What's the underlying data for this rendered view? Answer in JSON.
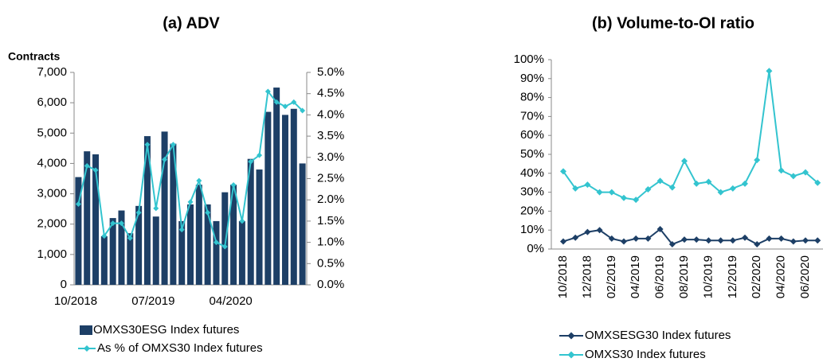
{
  "chart_data": [
    {
      "type": "bar_line",
      "title": "(a)  ADV",
      "y_label": "Contracts",
      "categories": [
        "10/2018",
        null,
        null,
        null,
        null,
        null,
        null,
        null,
        null,
        "07/2019",
        null,
        null,
        null,
        null,
        null,
        null,
        null,
        null,
        "04/2020",
        null,
        null,
        null,
        null,
        null,
        null,
        null,
        null
      ],
      "series": [
        {
          "name": "OMXS30ESG Index futures",
          "color": "#1d3f66",
          "kind": "bar",
          "values": [
            3550,
            4400,
            4300,
            1600,
            2200,
            2450,
            1700,
            2600,
            4900,
            2250,
            5050,
            4650,
            2100,
            2650,
            3300,
            2650,
            2100,
            3050,
            3300,
            2100,
            4150,
            3800,
            5700,
            6500,
            5600,
            5800,
            4000
          ]
        },
        {
          "name": "As % of OMXS30 Index futures",
          "color": "#33c4cf",
          "kind": "line",
          "axis": "y2",
          "values": [
            1.9,
            2.8,
            2.7,
            1.15,
            1.45,
            1.45,
            1.1,
            1.7,
            3.3,
            1.8,
            2.95,
            3.3,
            1.3,
            1.95,
            2.45,
            1.7,
            1.0,
            0.9,
            2.35,
            1.5,
            2.9,
            3.05,
            4.55,
            4.3,
            4.2,
            4.3,
            4.1
          ]
        }
      ],
      "ylim": [
        0,
        7000
      ],
      "yticks": [
        0,
        {
          "value": 1000,
          "label": "1,000"
        },
        {
          "value": 2000,
          "label": "2,000"
        },
        {
          "value": 3000,
          "label": "3,000"
        },
        {
          "value": 4000,
          "label": "4,000"
        },
        {
          "value": 5000,
          "label": "5,000"
        },
        {
          "value": 6000,
          "label": "6,000"
        },
        {
          "value": 7000,
          "label": "7,000"
        }
      ],
      "y2lim": [
        0,
        5
      ],
      "y2ticks": [
        {
          "value": 0,
          "label": "0.0%"
        },
        {
          "value": 0.5,
          "label": "0.5%"
        },
        {
          "value": 1,
          "label": "1.0%"
        },
        {
          "value": 1.5,
          "label": "1.5%"
        },
        {
          "value": 2,
          "label": "2.0%"
        },
        {
          "value": 2.5,
          "label": "2.5%"
        },
        {
          "value": 3,
          "label": "3.0%"
        },
        {
          "value": 3.5,
          "label": "3.5%"
        },
        {
          "value": 4,
          "label": "4.0%"
        },
        {
          "value": 4.5,
          "label": "4.5%"
        },
        {
          "value": 5,
          "label": "5.0%"
        }
      ]
    },
    {
      "type": "line",
      "title": "(b)  Volume-to-OI ratio",
      "categories": [
        "10/2018",
        null,
        "12/2018",
        null,
        "02/2019",
        null,
        "04/2019",
        null,
        "06/2019",
        null,
        "08/2019",
        null,
        "10/2019",
        null,
        "12/2019",
        null,
        "02/2020",
        null,
        "04/2020",
        null,
        "06/2020",
        null
      ],
      "series": [
        {
          "name": "OMXSESG30 Index futures",
          "color": "#1d3f66",
          "values": [
            4,
            6,
            9,
            10,
            5.5,
            4,
            5.5,
            5.5,
            10.5,
            2.5,
            5,
            5,
            4.5,
            4.5,
            4.5,
            6,
            2.5,
            5.5,
            5.5,
            4,
            4.5,
            4.5
          ]
        },
        {
          "name": "OMXS30 Index futures",
          "color": "#33c4cf",
          "values": [
            41,
            32,
            34,
            30,
            30,
            27,
            26,
            31.5,
            36,
            32.5,
            46.5,
            34.5,
            35.5,
            30,
            32,
            34.5,
            47,
            94,
            41.5,
            38.5,
            40.5,
            35
          ]
        }
      ],
      "ylim": [
        0,
        100
      ],
      "yticks": [
        {
          "value": 0,
          "label": "0%"
        },
        {
          "value": 10,
          "label": "10%"
        },
        {
          "value": 20,
          "label": "20%"
        },
        {
          "value": 30,
          "label": "30%"
        },
        {
          "value": 40,
          "label": "40%"
        },
        {
          "value": 50,
          "label": "50%"
        },
        {
          "value": 60,
          "label": "60%"
        },
        {
          "value": 70,
          "label": "70%"
        },
        {
          "value": 80,
          "label": "80%"
        },
        {
          "value": 90,
          "label": "90%"
        },
        {
          "value": 100,
          "label": "100%"
        }
      ]
    }
  ]
}
